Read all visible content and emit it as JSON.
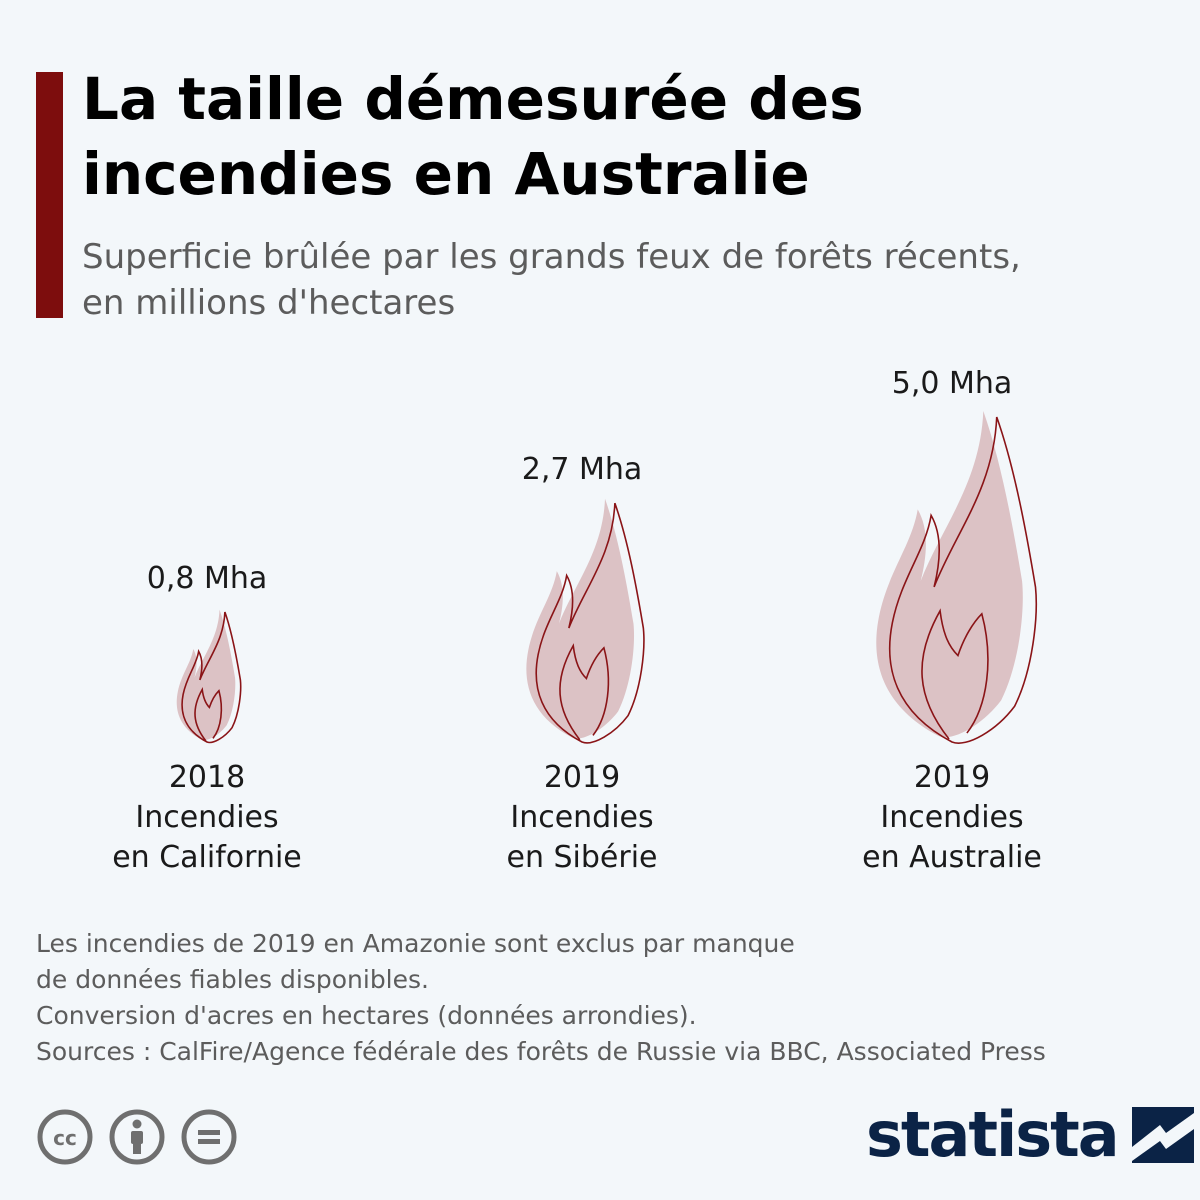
{
  "header": {
    "title_lines": [
      "La taille démesurée des",
      "incendies en Australie"
    ],
    "subtitle_lines": [
      "Superficie brûlée par les grands feux de forêts récents,",
      "en millions d'hectares"
    ]
  },
  "chart_data": {
    "type": "pictogram",
    "title": "La taille démesurée des incendies en Australie",
    "subtitle": "Superficie brûlée par les grands feux de forêts récents, en millions d'hectares",
    "unit": "Mha",
    "items": [
      {
        "year": "2018",
        "label_lines": [
          "Incendies",
          "en Californie"
        ],
        "value": 0.8,
        "value_label": "0,8 Mha"
      },
      {
        "year": "2019",
        "label_lines": [
          "Incendies",
          "en Sibérie"
        ],
        "value": 2.7,
        "value_label": "2,7 Mha"
      },
      {
        "year": "2019",
        "label_lines": [
          "Incendies",
          "en Australie"
        ],
        "value": 5.0,
        "value_label": "5,0 Mha"
      }
    ],
    "colors": {
      "flame_fill": "#dcc2c5",
      "flame_outline": "#8a1417",
      "text": "#1a1a1a"
    }
  },
  "notes": [
    "Les incendies de 2019 en Amazonie sont exclus par manque",
    "de données fiables disponibles.",
    "Conversion d'acres en hectares (données arrondies).",
    "Sources : CalFire/Agence fédérale des forêts de Russie via BBC, Associated Press"
  ],
  "footer": {
    "license_icons": [
      "cc-icon",
      "attribution-icon",
      "no-derivatives-icon"
    ],
    "brand": "statista"
  },
  "colors": {
    "accent": "#7d0d0d",
    "brand": "#0b2346",
    "background": "#f3f7fa",
    "muted_text": "#5c5c5c"
  }
}
